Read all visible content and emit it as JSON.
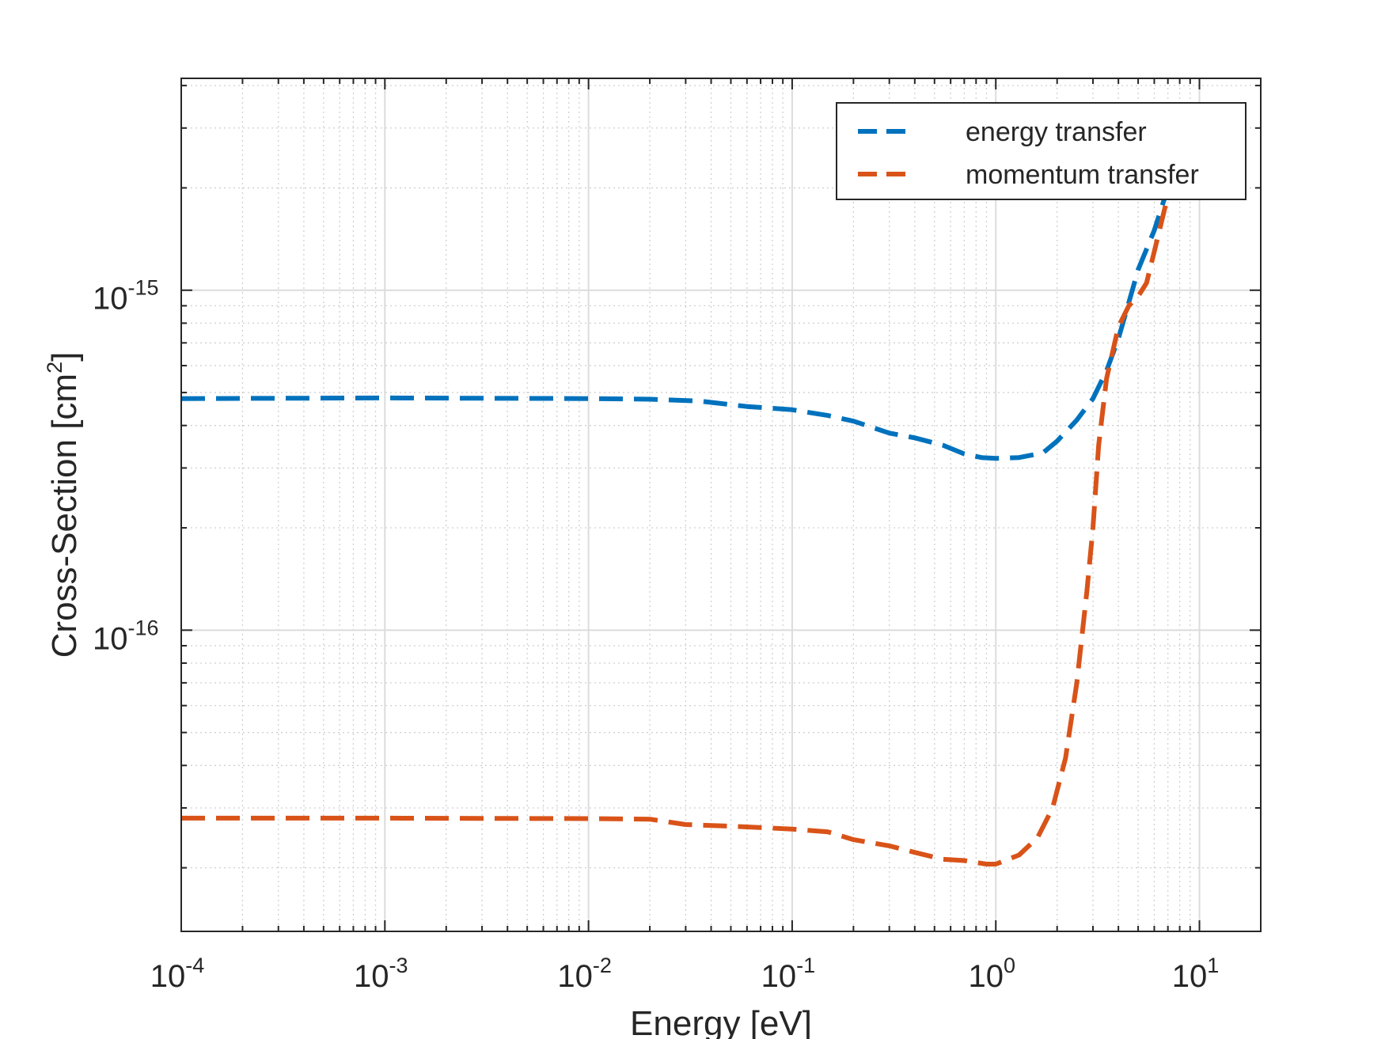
{
  "chart_data": {
    "type": "line",
    "title": "",
    "xlabel": "Energy [eV]",
    "ylabel": {
      "prefix": "Cross-Section [cm",
      "superscript": "2",
      "suffix": "]"
    },
    "xscale": "log",
    "yscale": "log",
    "xlim": [
      0.0001,
      20
    ],
    "ylim": [
      1.3e-17,
      4.2e-15
    ],
    "grid": true,
    "minor_grid": true,
    "legend_position": "top-right",
    "x_ticks": [
      {
        "value": 0.0001,
        "base": "10",
        "exp": "-4"
      },
      {
        "value": 0.001,
        "base": "10",
        "exp": "-3"
      },
      {
        "value": 0.01,
        "base": "10",
        "exp": "-2"
      },
      {
        "value": 0.1,
        "base": "10",
        "exp": "-1"
      },
      {
        "value": 1,
        "base": "10",
        "exp": "0"
      },
      {
        "value": 10,
        "base": "10",
        "exp": "1"
      }
    ],
    "y_ticks": [
      {
        "value": 1e-16,
        "base": "10",
        "exp": "-16"
      },
      {
        "value": 1e-15,
        "base": "10",
        "exp": "-15"
      }
    ],
    "series": [
      {
        "name": "energy transfer",
        "color": "#0072BD",
        "style": "dashed",
        "x": [
          0.0001,
          0.001,
          0.01,
          0.02,
          0.035,
          0.06,
          0.1,
          0.15,
          0.2,
          0.3,
          0.4,
          0.55,
          0.7,
          0.85,
          1.0,
          1.3,
          1.7,
          2.0,
          2.5,
          3.0,
          3.5,
          4.0,
          4.5,
          5.0,
          6.0,
          7.0
        ],
        "y": [
          4.8e-16,
          4.82e-16,
          4.8e-16,
          4.78e-16,
          4.72e-16,
          4.55e-16,
          4.45e-16,
          4.28e-16,
          4.12e-16,
          3.8e-16,
          3.68e-16,
          3.5e-16,
          3.3e-16,
          3.22e-16,
          3.2e-16,
          3.22e-16,
          3.32e-16,
          3.6e-16,
          4.15e-16,
          4.8e-16,
          5.8e-16,
          7.2e-16,
          9.2e-16,
          1.15e-15,
          1.5e-15,
          2e-15
        ]
      },
      {
        "name": "momentum transfer",
        "color": "#D95319",
        "style": "dashed",
        "x": [
          0.0001,
          0.001,
          0.01,
          0.02,
          0.03,
          0.05,
          0.1,
          0.15,
          0.2,
          0.3,
          0.4,
          0.55,
          0.7,
          0.9,
          1.0,
          1.3,
          1.6,
          1.9,
          2.2,
          2.5,
          2.8,
          3.0,
          3.2,
          3.5,
          4.0,
          4.5,
          5.0,
          5.5,
          6.0,
          7.0
        ],
        "y": [
          2.8e-17,
          2.8e-17,
          2.79e-17,
          2.78e-17,
          2.68e-17,
          2.65e-17,
          2.6e-17,
          2.55e-17,
          2.42e-17,
          2.32e-17,
          2.22e-17,
          2.12e-17,
          2.1e-17,
          2.05e-17,
          2.05e-17,
          2.18e-17,
          2.45e-17,
          3e-17,
          4.2e-17,
          7e-17,
          1.3e-16,
          2e-16,
          3.5e-16,
          5.5e-16,
          7.8e-16,
          9e-16,
          9.6e-16,
          1.05e-15,
          1.3e-15,
          1.9e-15
        ]
      }
    ]
  }
}
